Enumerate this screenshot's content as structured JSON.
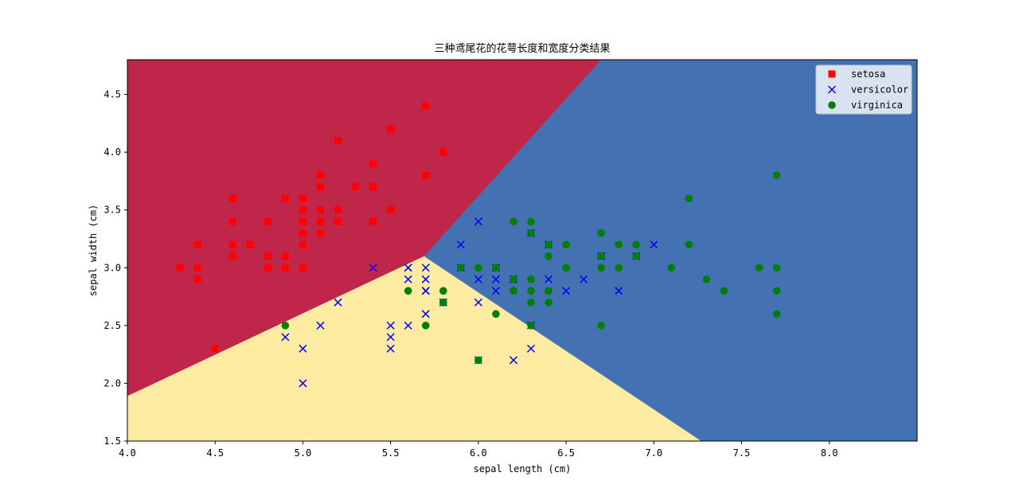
{
  "chart_data": {
    "type": "scatter",
    "title": "三种鸢尾花的花萼长度和宽度分类结果",
    "xlabel": "sepal length (cm)",
    "ylabel": "sepal width (cm)",
    "xlim": [
      4.0,
      8.5
    ],
    "ylim": [
      1.5,
      4.8
    ],
    "xticks": [
      4.0,
      4.5,
      5.0,
      5.5,
      6.0,
      6.5,
      7.0,
      7.5,
      8.0
    ],
    "yticks": [
      1.5,
      2.0,
      2.5,
      3.0,
      3.5,
      4.0,
      4.5
    ],
    "legend_position": "top-right",
    "grid": false,
    "regions": [
      {
        "class": "setosa",
        "color": "#c0264a"
      },
      {
        "class": "versicolor",
        "color": "#fdeba1"
      },
      {
        "class": "virginica",
        "color": "#4471b2"
      }
    ],
    "series": [
      {
        "name": "setosa",
        "marker": "square",
        "color": "#ff0000",
        "points": [
          [
            5.1,
            3.5
          ],
          [
            4.9,
            3.0
          ],
          [
            4.7,
            3.2
          ],
          [
            4.6,
            3.1
          ],
          [
            5.0,
            3.6
          ],
          [
            5.4,
            3.9
          ],
          [
            4.6,
            3.4
          ],
          [
            5.0,
            3.4
          ],
          [
            4.4,
            2.9
          ],
          [
            4.9,
            3.1
          ],
          [
            5.4,
            3.7
          ],
          [
            4.8,
            3.4
          ],
          [
            4.8,
            3.0
          ],
          [
            4.3,
            3.0
          ],
          [
            5.8,
            4.0
          ],
          [
            5.7,
            4.4
          ],
          [
            5.1,
            3.8
          ],
          [
            5.7,
            3.8
          ],
          [
            5.1,
            3.7
          ],
          [
            5.0,
            3.0
          ],
          [
            5.2,
            3.5
          ],
          [
            5.2,
            3.4
          ],
          [
            4.7,
            3.2
          ],
          [
            5.4,
            3.4
          ],
          [
            5.2,
            4.1
          ],
          [
            5.5,
            4.2
          ],
          [
            5.0,
            3.2
          ],
          [
            5.5,
            3.5
          ],
          [
            4.4,
            3.0
          ],
          [
            5.1,
            3.4
          ],
          [
            4.5,
            2.3
          ],
          [
            4.4,
            3.2
          ],
          [
            5.0,
            3.5
          ],
          [
            5.1,
            3.3
          ],
          [
            4.8,
            3.1
          ],
          [
            4.6,
            3.6
          ],
          [
            4.6,
            3.2
          ],
          [
            4.9,
            3.6
          ],
          [
            5.3,
            3.7
          ],
          [
            5.0,
            3.3
          ],
          [
            4.8,
            3.0
          ]
        ]
      },
      {
        "name": "versicolor",
        "marker": "x",
        "color": "#0000ff",
        "points": [
          [
            7.0,
            3.2
          ],
          [
            6.4,
            3.2
          ],
          [
            6.9,
            3.1
          ],
          [
            5.5,
            2.3
          ],
          [
            6.5,
            2.8
          ],
          [
            5.7,
            2.8
          ],
          [
            6.3,
            3.3
          ],
          [
            4.9,
            2.4
          ],
          [
            6.6,
            2.9
          ],
          [
            5.2,
            2.7
          ],
          [
            5.0,
            2.0
          ],
          [
            5.9,
            3.0
          ],
          [
            6.0,
            2.2
          ],
          [
            6.1,
            2.9
          ],
          [
            5.6,
            2.9
          ],
          [
            6.7,
            3.1
          ],
          [
            5.6,
            3.0
          ],
          [
            5.8,
            2.7
          ],
          [
            6.2,
            2.2
          ],
          [
            5.6,
            2.5
          ],
          [
            5.9,
            3.2
          ],
          [
            6.1,
            2.8
          ],
          [
            6.3,
            2.5
          ],
          [
            6.4,
            2.9
          ],
          [
            6.8,
            2.8
          ],
          [
            6.0,
            2.9
          ],
          [
            5.7,
            2.6
          ],
          [
            5.5,
            2.4
          ],
          [
            5.8,
            2.7
          ],
          [
            6.0,
            2.7
          ],
          [
            5.4,
            3.0
          ],
          [
            6.0,
            3.4
          ],
          [
            6.7,
            3.1
          ],
          [
            6.3,
            2.3
          ],
          [
            5.6,
            3.0
          ],
          [
            5.5,
            2.5
          ],
          [
            6.1,
            3.0
          ],
          [
            5.0,
            2.3
          ],
          [
            5.7,
            3.0
          ],
          [
            5.7,
            2.9
          ],
          [
            6.2,
            2.9
          ],
          [
            5.1,
            2.5
          ],
          [
            5.7,
            2.8
          ]
        ]
      },
      {
        "name": "virginica",
        "marker": "circle",
        "color": "#008000",
        "points": [
          [
            6.3,
            3.3
          ],
          [
            5.8,
            2.7
          ],
          [
            7.1,
            3.0
          ],
          [
            6.3,
            2.9
          ],
          [
            6.5,
            3.0
          ],
          [
            7.6,
            3.0
          ],
          [
            4.9,
            2.5
          ],
          [
            7.3,
            2.9
          ],
          [
            6.7,
            2.5
          ],
          [
            7.2,
            3.6
          ],
          [
            6.5,
            3.2
          ],
          [
            6.4,
            2.7
          ],
          [
            6.8,
            3.0
          ],
          [
            5.7,
            2.5
          ],
          [
            5.8,
            2.8
          ],
          [
            6.4,
            3.2
          ],
          [
            7.7,
            3.8
          ],
          [
            7.7,
            2.6
          ],
          [
            6.0,
            2.2
          ],
          [
            6.9,
            3.2
          ],
          [
            5.6,
            2.8
          ],
          [
            7.7,
            2.8
          ],
          [
            6.3,
            2.7
          ],
          [
            6.7,
            3.3
          ],
          [
            7.2,
            3.2
          ],
          [
            6.2,
            2.8
          ],
          [
            6.1,
            3.0
          ],
          [
            6.4,
            2.8
          ],
          [
            7.4,
            2.8
          ],
          [
            6.4,
            2.8
          ],
          [
            6.3,
            2.8
          ],
          [
            6.1,
            2.6
          ],
          [
            7.7,
            3.0
          ],
          [
            6.3,
            3.4
          ],
          [
            6.4,
            3.1
          ],
          [
            6.0,
            3.0
          ],
          [
            6.9,
            3.1
          ],
          [
            6.7,
            3.1
          ],
          [
            5.8,
            2.7
          ],
          [
            6.8,
            3.2
          ],
          [
            6.7,
            3.3
          ],
          [
            6.7,
            3.0
          ],
          [
            6.3,
            2.5
          ],
          [
            6.5,
            3.0
          ],
          [
            6.2,
            3.4
          ],
          [
            5.9,
            3.0
          ],
          [
            6.2,
            2.9
          ]
        ]
      }
    ]
  }
}
